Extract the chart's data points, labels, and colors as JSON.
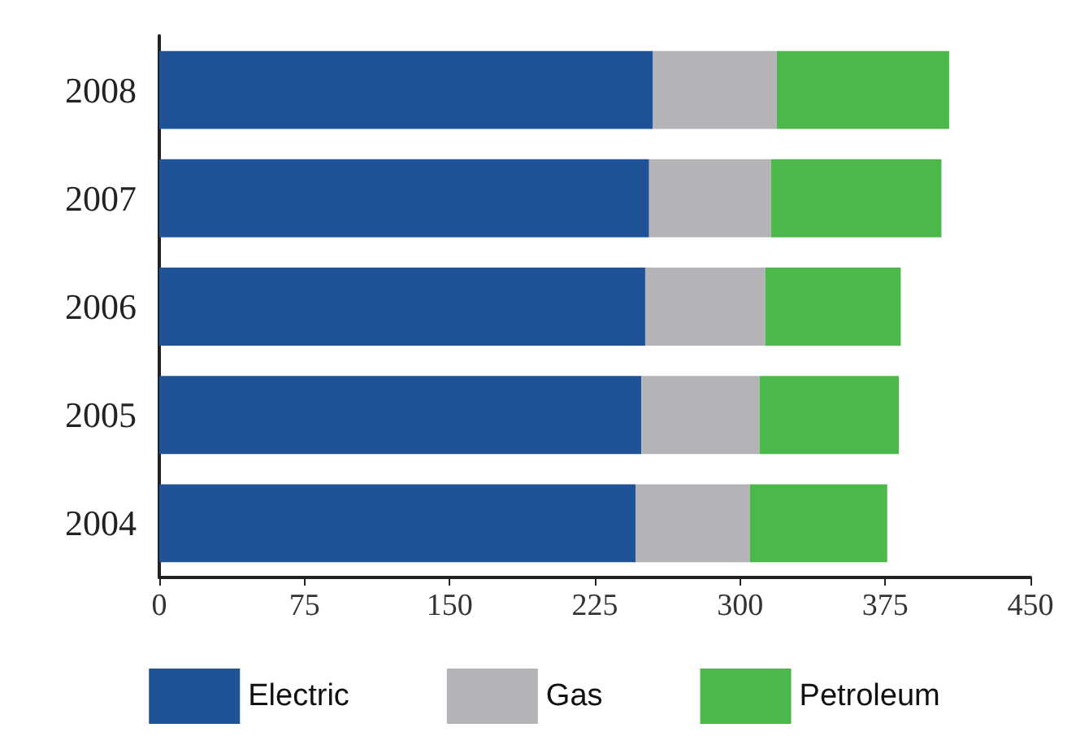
{
  "chart_data": {
    "type": "bar",
    "orientation": "horizontal",
    "stacked": true,
    "categories": [
      "2008",
      "2007",
      "2006",
      "2005",
      "2004"
    ],
    "series": [
      {
        "name": "Electric",
        "color": "#1f5296",
        "values": [
          255,
          253,
          251,
          249,
          246
        ]
      },
      {
        "name": "Gas",
        "color": "#b4b4b8",
        "values": [
          64,
          63,
          62,
          61,
          59
        ]
      },
      {
        "name": "Petroleum",
        "color": "#4cb84c",
        "values": [
          89,
          88,
          70,
          72,
          71
        ]
      }
    ],
    "xlim": [
      0,
      450
    ],
    "xticks": [
      0,
      75,
      150,
      225,
      300,
      375,
      450
    ],
    "grid": false,
    "legend": "bottom"
  }
}
